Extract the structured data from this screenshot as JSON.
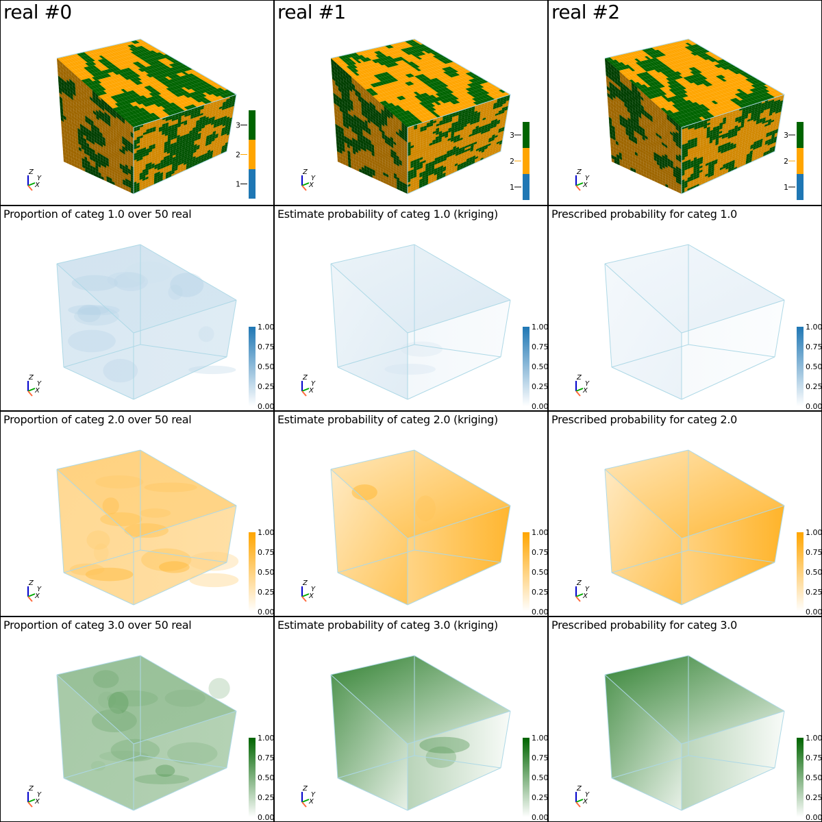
{
  "colors": {
    "categ_1": "#1f77b4",
    "categ_2": "#ffa500",
    "categ_3": "#006400",
    "box_edge": "#add8e6"
  },
  "panels": [
    {
      "id": "real0",
      "title": "real #0",
      "kind": "categorical",
      "seed": 11
    },
    {
      "id": "real1",
      "title": "real #1",
      "kind": "categorical",
      "seed": 23
    },
    {
      "id": "real2",
      "title": "real #2",
      "kind": "categorical",
      "seed": 37
    },
    {
      "id": "prop1",
      "title": "Proportion of categ 1.0 over 50 real",
      "kind": "proportion",
      "categ": 1,
      "level": 0.22
    },
    {
      "id": "est1",
      "title": "Estimate probability of categ 1.0 (kriging)",
      "kind": "estimate",
      "categ": 1,
      "level": 0.18
    },
    {
      "id": "pres1",
      "title": "Prescribed probability for categ 1.0",
      "kind": "prescribed",
      "categ": 1,
      "level": 0.12
    },
    {
      "id": "prop2",
      "title": "Proportion of categ 2.0 over 50 real",
      "kind": "proportion",
      "categ": 2,
      "level": 0.55
    },
    {
      "id": "est2",
      "title": "Estimate probability of categ 2.0 (kriging)",
      "kind": "estimate",
      "categ": 2,
      "level": 0.6
    },
    {
      "id": "pres2",
      "title": "Prescribed probability for categ 2.0",
      "kind": "prescribed",
      "categ": 2,
      "level": 0.62
    },
    {
      "id": "prop3",
      "title": "Proportion of categ 3.0 over 50 real",
      "kind": "proportion",
      "categ": 3,
      "level": 0.45
    },
    {
      "id": "est3",
      "title": "Estimate probability of categ 3.0 (kriging)",
      "kind": "estimate",
      "categ": 3,
      "level": 0.55
    },
    {
      "id": "pres3",
      "title": "Prescribed probability for categ 3.0",
      "kind": "prescribed",
      "categ": 3,
      "level": 0.55
    }
  ],
  "categorical_legend": {
    "ticks": [
      "1",
      "2",
      "3"
    ]
  },
  "continuous_legend": {
    "ticks": [
      "1.00",
      "0.75",
      "0.50",
      "0.25",
      "0.00"
    ],
    "min": 0.0,
    "max": 1.0
  },
  "orientation_axes": {
    "labels": [
      "Z",
      "Y",
      "X"
    ]
  }
}
